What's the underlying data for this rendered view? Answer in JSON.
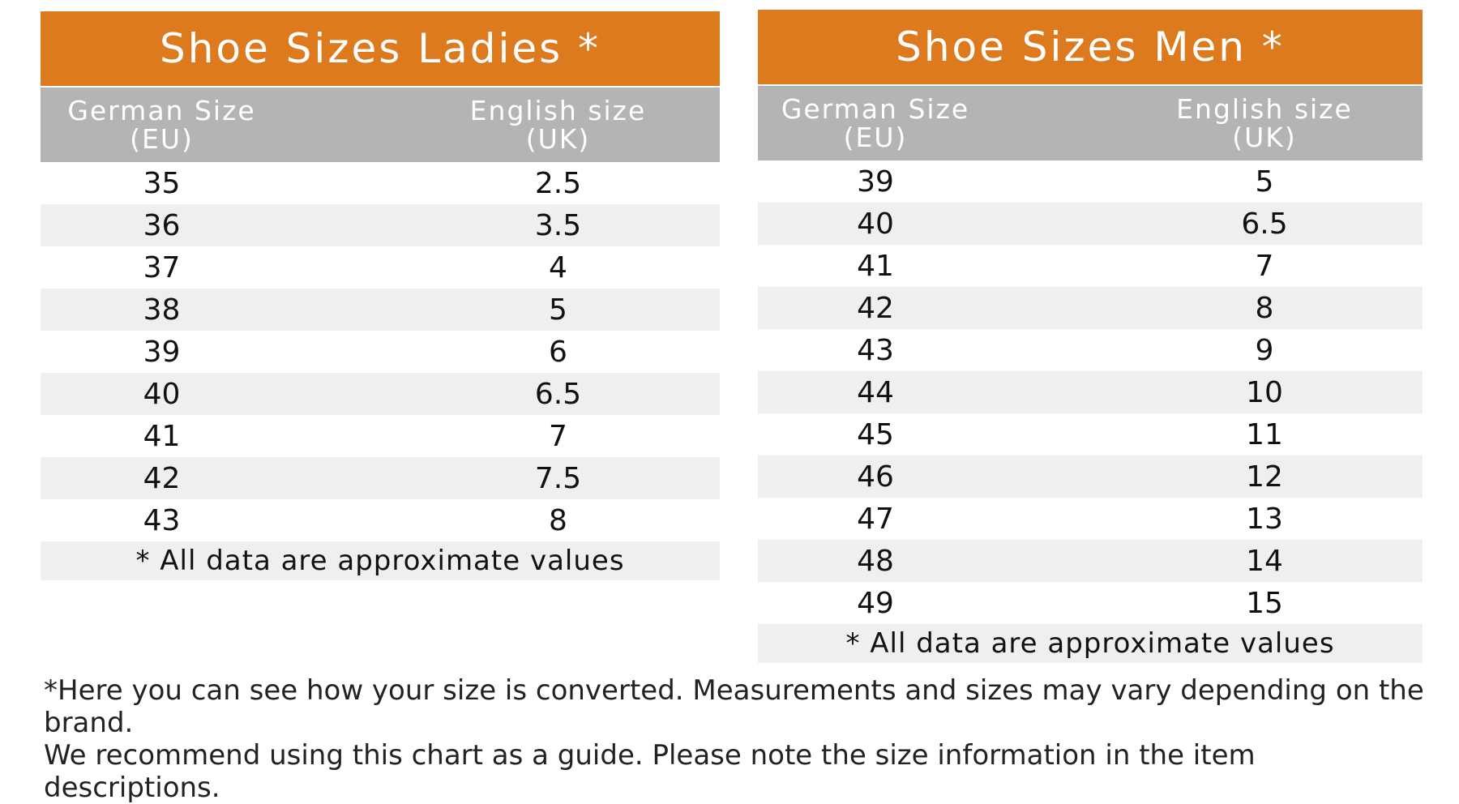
{
  "ladies": {
    "title": "Shoe Sizes Ladies *",
    "col_eu_line1": "German Size",
    "col_eu_line2": "(EU)",
    "col_uk_line1": "English size",
    "col_uk_line2": "(UK)",
    "rows": [
      {
        "eu": "35",
        "uk": "2.5"
      },
      {
        "eu": "36",
        "uk": "3.5"
      },
      {
        "eu": "37",
        "uk": "4"
      },
      {
        "eu": "38",
        "uk": "5"
      },
      {
        "eu": "39",
        "uk": "6"
      },
      {
        "eu": "40",
        "uk": "6.5"
      },
      {
        "eu": "41",
        "uk": "7"
      },
      {
        "eu": "42",
        "uk": "7.5"
      },
      {
        "eu": "43",
        "uk": "8"
      }
    ],
    "note": "* All data are approximate values"
  },
  "men": {
    "title": "Shoe Sizes Men *",
    "col_eu_line1": "German Size",
    "col_eu_line2": "(EU)",
    "col_uk_line1": "English size",
    "col_uk_line2": "(UK)",
    "rows": [
      {
        "eu": "39",
        "uk": "5"
      },
      {
        "eu": "40",
        "uk": "6.5"
      },
      {
        "eu": "41",
        "uk": "7"
      },
      {
        "eu": "42",
        "uk": "8"
      },
      {
        "eu": "43",
        "uk": "9"
      },
      {
        "eu": "44",
        "uk": "10"
      },
      {
        "eu": "45",
        "uk": "11"
      },
      {
        "eu": "46",
        "uk": "12"
      },
      {
        "eu": "47",
        "uk": "13"
      },
      {
        "eu": "48",
        "uk": "14"
      },
      {
        "eu": "49",
        "uk": "15"
      }
    ],
    "note": "* All data are approximate values"
  },
  "footer": {
    "line1": "*Here you can see how your size is converted. Measurements and sizes may vary depending on the brand.",
    "line2": "We recommend using this chart as a guide. Please note the size information in the item descriptions."
  },
  "colors": {
    "header_orange": "#de7a1e",
    "subheader_gray": "#b4b4b4",
    "stripe_gray": "#efefef"
  }
}
